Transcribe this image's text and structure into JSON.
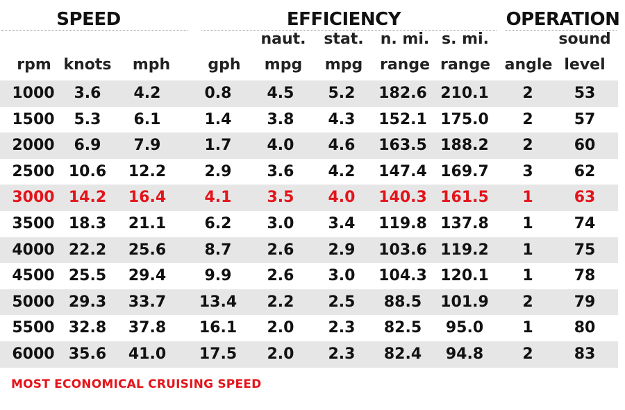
{
  "groups": {
    "speed": "SPEED",
    "efficiency": "EFFICIENCY",
    "operation": "OPERATION"
  },
  "headers": {
    "rpm": [
      "",
      "rpm"
    ],
    "knots": [
      "",
      "knots"
    ],
    "mph": [
      "",
      "mph"
    ],
    "gph": [
      "",
      "gph"
    ],
    "naut_mpg": [
      "naut.",
      "mpg"
    ],
    "stat_mpg": [
      "stat.",
      "mpg"
    ],
    "n_range": [
      "n. mi.",
      "range"
    ],
    "s_range": [
      "s. mi.",
      "range"
    ],
    "angle": [
      "",
      "angle"
    ],
    "sound": [
      "sound",
      "level"
    ]
  },
  "rows": [
    [
      "1000",
      "3.6",
      "4.2",
      "0.8",
      "4.5",
      "5.2",
      "182.6",
      "210.1",
      "2",
      "53"
    ],
    [
      "1500",
      "5.3",
      "6.1",
      "1.4",
      "3.8",
      "4.3",
      "152.1",
      "175.0",
      "2",
      "57"
    ],
    [
      "2000",
      "6.9",
      "7.9",
      "1.7",
      "4.0",
      "4.6",
      "163.5",
      "188.2",
      "2",
      "60"
    ],
    [
      "2500",
      "10.6",
      "12.2",
      "2.9",
      "3.6",
      "4.2",
      "147.4",
      "169.7",
      "3",
      "62"
    ],
    [
      "3000",
      "14.2",
      "16.4",
      "4.1",
      "3.5",
      "4.0",
      "140.3",
      "161.5",
      "1",
      "63"
    ],
    [
      "3500",
      "18.3",
      "21.1",
      "6.2",
      "3.0",
      "3.4",
      "119.8",
      "137.8",
      "1",
      "74"
    ],
    [
      "4000",
      "22.2",
      "25.6",
      "8.7",
      "2.6",
      "2.9",
      "103.6",
      "119.2",
      "1",
      "75"
    ],
    [
      "4500",
      "25.5",
      "29.4",
      "9.9",
      "2.6",
      "3.0",
      "104.3",
      "120.1",
      "1",
      "78"
    ],
    [
      "5000",
      "29.3",
      "33.7",
      "13.4",
      "2.2",
      "2.5",
      "88.5",
      "101.9",
      "2",
      "79"
    ],
    [
      "5500",
      "32.8",
      "37.8",
      "16.1",
      "2.0",
      "2.3",
      "82.5",
      "95.0",
      "1",
      "80"
    ],
    [
      "6000",
      "35.6",
      "41.0",
      "17.5",
      "2.0",
      "2.3",
      "82.4",
      "94.8",
      "2",
      "83"
    ]
  ],
  "highlight_row_rpm": "3000",
  "highlight_color": "#e3141b",
  "shade_color": "#e6e6e6",
  "footnote": "MOST ECONOMICAL CRUISING SPEED"
}
